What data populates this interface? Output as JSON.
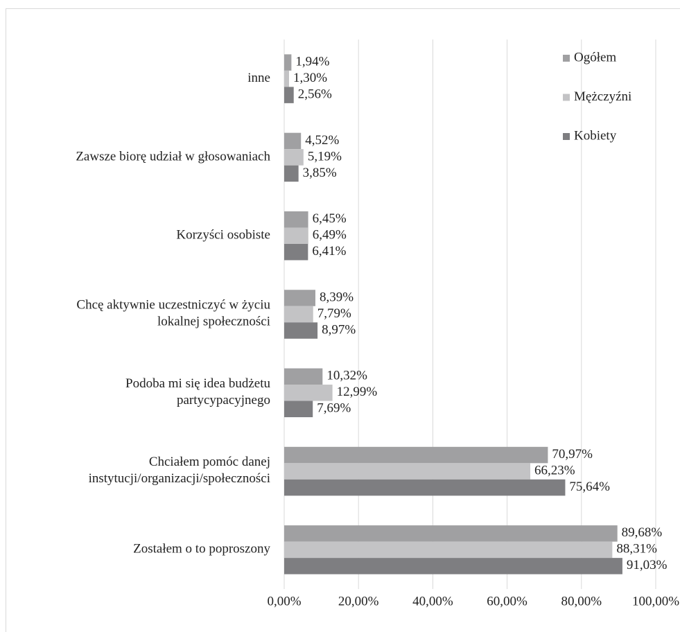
{
  "chart_data": {
    "type": "hbar",
    "categories": [
      "inne",
      "Zawsze biorę udział w głosowaniach",
      "Korzyści osobiste",
      "Chcę aktywnie uczestniczyć w życiu\nlokalnej społeczności",
      "Podoba mi się idea budżetu\npartycypacyjnego",
      "Chciałem pomóc danej\ninstytucji/organizacji/społeczności",
      "Zostałem o to poproszony"
    ],
    "series": [
      {
        "name": "Ogółem",
        "color": "#a0a0a2",
        "values": [
          1.94,
          4.52,
          6.45,
          8.39,
          10.32,
          70.97,
          89.68
        ],
        "value_labels": [
          "1,94%",
          "4,52%",
          "6,45%",
          "8,39%",
          "10,32%",
          "70,97%",
          "89,68%"
        ]
      },
      {
        "name": "Mężczyźni",
        "color": "#c3c3c5",
        "values": [
          1.3,
          5.19,
          6.49,
          7.79,
          12.99,
          66.23,
          88.31
        ],
        "value_labels": [
          "1,30%",
          "5,19%",
          "6,49%",
          "7,79%",
          "12,99%",
          "66,23%",
          "88,31%"
        ]
      },
      {
        "name": "Kobiety",
        "color": "#7e7e81",
        "values": [
          2.56,
          3.85,
          6.41,
          8.97,
          7.69,
          75.64,
          91.03
        ],
        "value_labels": [
          "2,56%",
          "3,85%",
          "6,41%",
          "8,97%",
          "7,69%",
          "75,64%",
          "91,03%"
        ]
      }
    ],
    "xlim": [
      0,
      100
    ],
    "xticks": [
      {
        "value": 0,
        "label": "0,00%"
      },
      {
        "value": 20,
        "label": "20,00%"
      },
      {
        "value": 40,
        "label": "40,00%"
      },
      {
        "value": 60,
        "label": "60,00%"
      },
      {
        "value": 80,
        "label": "80,00%"
      },
      {
        "value": 100,
        "label": "100,00%"
      }
    ],
    "grid": true,
    "legend": "top-right"
  }
}
